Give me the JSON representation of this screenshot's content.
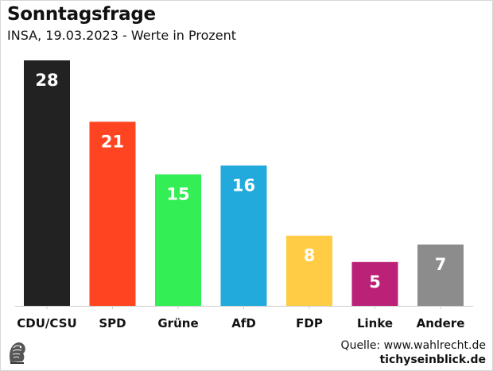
{
  "header": {
    "title": "Sonntagsfrage",
    "subtitle": "INSA, 19.03.2023 - Werte in Prozent"
  },
  "footer": {
    "source": "Quelle: www.wahlrecht.de",
    "brand": "tichyseinblick.de",
    "logo_icon": "eagle-head-logo-icon"
  },
  "chart_data": {
    "type": "bar",
    "categories": [
      "CDU/CSU",
      "SPD",
      "Grüne",
      "AfD",
      "FDP",
      "Linke",
      "Andere"
    ],
    "values": [
      28,
      21,
      15,
      16,
      8,
      5,
      7
    ],
    "colors": [
      "#222222",
      "#ff4422",
      "#33ee55",
      "#22aadd",
      "#ffcc44",
      "#bb2277",
      "#8c8c8c"
    ],
    "value_label_colors": [
      "#ffffff",
      "#ffffff",
      "#ffffff",
      "#ffffff",
      "#ffffff",
      "#ffffff",
      "#ffffff"
    ],
    "ylim": [
      0,
      28
    ],
    "grid": false
  }
}
